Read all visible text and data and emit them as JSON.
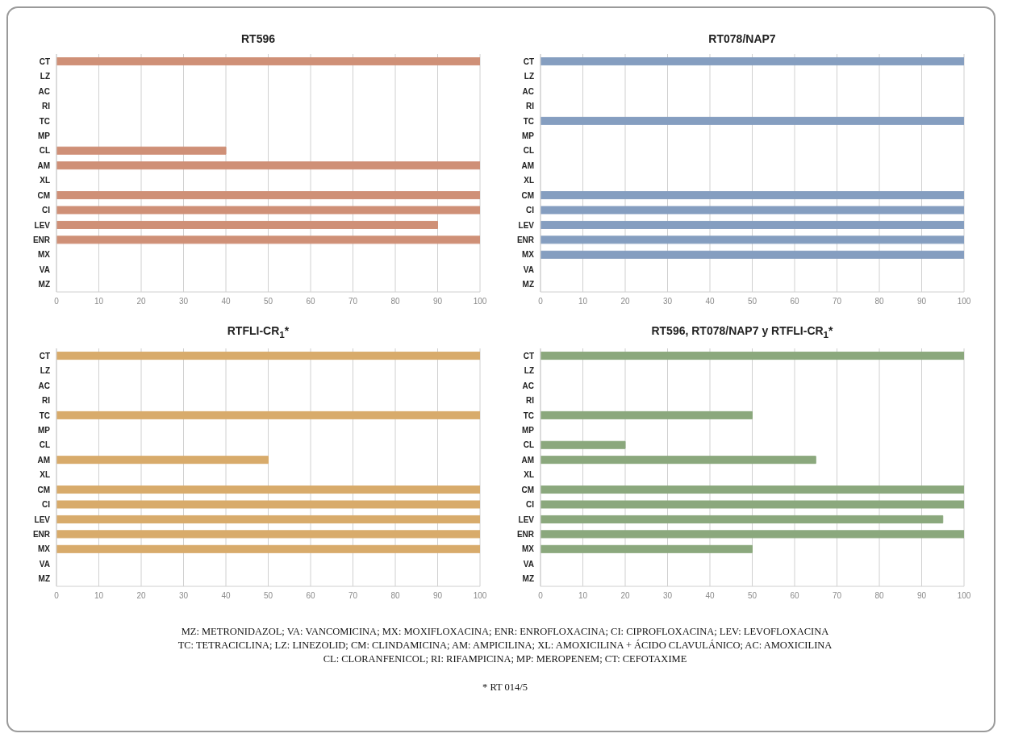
{
  "chart_data": [
    {
      "type": "bar",
      "orientation": "horizontal",
      "title": "RT596",
      "categories": [
        "CT",
        "LZ",
        "AC",
        "RI",
        "TC",
        "MP",
        "CL",
        "AM",
        "XL",
        "CM",
        "CI",
        "LEV",
        "ENR",
        "MX",
        "VA",
        "MZ"
      ],
      "values": [
        100,
        0,
        0,
        0,
        0,
        0,
        40,
        100,
        0,
        100,
        100,
        90,
        100,
        0,
        0,
        0
      ],
      "color": "#f4a98c",
      "xlim": [
        0,
        100
      ],
      "xticks": [
        0,
        10,
        20,
        30,
        40,
        50,
        60,
        70,
        80,
        90,
        100
      ],
      "grid": "x"
    },
    {
      "type": "bar",
      "orientation": "horizontal",
      "title": "RT078/NAP7",
      "categories": [
        "CT",
        "LZ",
        "AC",
        "RI",
        "TC",
        "MP",
        "CL",
        "AM",
        "XL",
        "CM",
        "CI",
        "LEV",
        "ENR",
        "MX",
        "VA",
        "MZ"
      ],
      "values": [
        100,
        0,
        0,
        0,
        100,
        0,
        0,
        0,
        0,
        100,
        100,
        100,
        100,
        100,
        0,
        0
      ],
      "color": "#9dbae2",
      "xlim": [
        0,
        100
      ],
      "xticks": [
        0,
        10,
        20,
        30,
        40,
        50,
        60,
        70,
        80,
        90,
        100
      ],
      "grid": "x"
    },
    {
      "type": "bar",
      "orientation": "horizontal",
      "title": "RTFLI-CR$_{1}$*",
      "categories": [
        "CT",
        "LZ",
        "AC",
        "RI",
        "TC",
        "MP",
        "CL",
        "AM",
        "XL",
        "CM",
        "CI",
        "LEV",
        "ENR",
        "MX",
        "VA",
        "MZ"
      ],
      "values": [
        100,
        0,
        0,
        0,
        100,
        0,
        0,
        50,
        0,
        100,
        100,
        100,
        100,
        100,
        0,
        0
      ],
      "color": "#fec97e",
      "xlim": [
        0,
        100
      ],
      "xticks": [
        0,
        10,
        20,
        30,
        40,
        50,
        60,
        70,
        80,
        90,
        100
      ],
      "grid": "x"
    },
    {
      "type": "bar",
      "orientation": "horizontal",
      "title": "RT596, RT078/NAP7 y RTFLI-CR$_{1}$*",
      "categories": [
        "CT",
        "LZ",
        "AC",
        "RI",
        "TC",
        "MP",
        "CL",
        "AM",
        "XL",
        "CM",
        "CI",
        "LEV",
        "ENR",
        "MX",
        "VA",
        "MZ"
      ],
      "values": [
        100,
        0,
        0,
        0,
        50,
        0,
        20,
        65,
        0,
        100,
        100,
        95,
        100,
        50,
        0,
        0
      ],
      "color": "#a3c693",
      "xlim": [
        0,
        100
      ],
      "xticks": [
        0,
        10,
        20,
        30,
        40,
        50,
        60,
        70,
        80,
        90,
        100
      ],
      "grid": "x",
      "annotations": [
        "MZ: METRONIDAZOL; VA: VANCOMICINA; MX: MOXIFLOXACINA; ENR: ENROFLOXACINA; CI: CIPROFLOXACINA; LEV: LEVOFLOXACINA",
        "TC: TETRACICLINA; LZ: LINEZOLID; CM: CLINDAMICINA; AM: AMPICILINA; XL: AMOXICILINA + ÁCIDO CLAVULÁNICO; AC: AMOXICILINA",
        "CL: CLORANFENICOL; RI: RIFAMPICINA; MP: MEROPENEM; CT: CEFOTAXIME",
        "* RT 014/5"
      ]
    }
  ]
}
